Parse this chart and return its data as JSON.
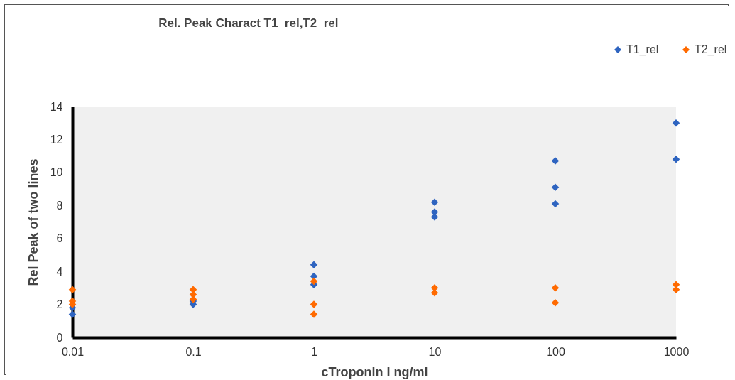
{
  "chart_data": {
    "type": "scatter",
    "title": "Rel. Peak Charact T1_rel,T2_rel",
    "xlabel": "cTroponin I ng/ml",
    "ylabel": "Rel Peak of two lines",
    "log": "x",
    "xlim": [
      0.01,
      1000
    ],
    "xticks": [
      0.01,
      0.1,
      1,
      10,
      100,
      1000
    ],
    "ylim": [
      0,
      14
    ],
    "yticks": [
      0,
      2,
      4,
      6,
      8,
      10,
      12,
      14
    ],
    "grid": false,
    "legend": "top right",
    "marker": "diamond",
    "series": [
      {
        "name": "T1_rel",
        "color": "#2e64c0",
        "x": [
          0.01,
          0.01,
          0.1,
          0.1,
          1,
          1,
          1,
          10,
          10,
          10,
          100,
          100,
          100,
          1000,
          1000
        ],
        "values": [
          1.4,
          1.8,
          2.0,
          2.2,
          4.4,
          3.7,
          3.2,
          8.2,
          7.6,
          7.3,
          10.7,
          9.1,
          8.1,
          13.0,
          10.8
        ]
      },
      {
        "name": "T2_rel",
        "color": "#ff6a00",
        "x": [
          0.01,
          0.01,
          0.01,
          0.1,
          0.1,
          0.1,
          1,
          1,
          1,
          10,
          10,
          100,
          100,
          1000,
          1000
        ],
        "values": [
          2.9,
          2.2,
          2.0,
          2.9,
          2.6,
          2.3,
          3.4,
          2.0,
          1.4,
          3.0,
          2.7,
          3.0,
          2.1,
          3.2,
          2.9
        ]
      }
    ]
  }
}
